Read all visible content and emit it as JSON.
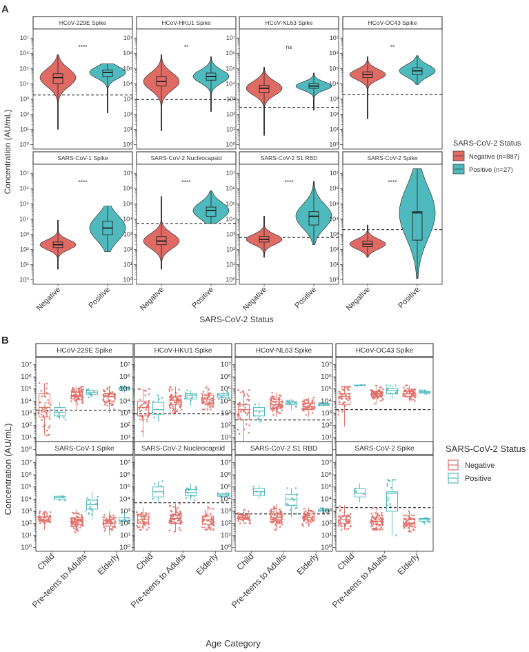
{
  "colors": {
    "negative": "#E06B65",
    "positive": "#4FBABD",
    "negative_dark": "#C6534D",
    "positive_dark": "#2E9FA3"
  },
  "chart_data": [
    {
      "type": "violin",
      "panel_label": "A",
      "title": "",
      "xlabel": "SARS-CoV-2 Status",
      "ylabel": "Concentration (AU/mL)",
      "y_scale": "log10",
      "ylim_exponent": [
        -0.3,
        7.6
      ],
      "y_tick_labels": [
        "10^0",
        "10^1",
        "10^2",
        "10^3",
        "10^4",
        "10^5",
        "10^6",
        "10^7"
      ],
      "categories": [
        "Negative",
        "Positive"
      ],
      "legend": {
        "title": "SARS-CoV-2 Status",
        "entries": [
          {
            "label": "Negative (n=887)",
            "series": "negative"
          },
          {
            "label": "Positive (n=27)",
            "series": "positive"
          }
        ]
      },
      "panels": [
        {
          "title": "HCoV-229E Spike",
          "significance": "****",
          "threshold": 1800,
          "series": [
            {
              "name": "Negative",
              "min": 10,
              "q1": 10000,
              "median": 25000,
              "q3": 45000,
              "max": 800000
            },
            {
              "name": "Positive",
              "min": 120,
              "q1": 30000,
              "median": 55000,
              "q3": 80000,
              "max": 200000
            }
          ]
        },
        {
          "title": "HCoV-HKU1 Spike",
          "significance": "**",
          "threshold": 900,
          "series": [
            {
              "name": "Negative",
              "min": 8,
              "q1": 7000,
              "median": 14000,
              "q3": 30000,
              "max": 800000
            },
            {
              "name": "Positive",
              "min": 150,
              "q1": 17000,
              "median": 30000,
              "q3": 50000,
              "max": 600000
            }
          ]
        },
        {
          "title": "HCoV-NL63 Spike",
          "significance": "ns",
          "threshold": 280,
          "series": [
            {
              "name": "Negative",
              "min": 4,
              "q1": 2500,
              "median": 5000,
              "q3": 8000,
              "max": 120000
            },
            {
              "name": "Positive",
              "min": 180,
              "q1": 5000,
              "median": 7000,
              "q3": 10000,
              "max": 50000
            }
          ]
        },
        {
          "title": "HCoV-OC43 Spike",
          "significance": "**",
          "threshold": 2000,
          "series": [
            {
              "name": "Negative",
              "min": 50,
              "q1": 25000,
              "median": 40000,
              "q3": 60000,
              "max": 600000
            },
            {
              "name": "Positive",
              "min": 9000,
              "q1": 40000,
              "median": 70000,
              "q3": 110000,
              "max": 700000
            }
          ]
        },
        {
          "title": "SARS-CoV-1 Spike",
          "significance": "****",
          "threshold": null,
          "series": [
            {
              "name": "Negative",
              "min": 5,
              "q1": 130,
              "median": 200,
              "q3": 300,
              "max": 8000
            },
            {
              "name": "Positive",
              "min": 70,
              "q1": 900,
              "median": 2500,
              "q3": 7000,
              "max": 70000
            }
          ]
        },
        {
          "title": "SARS-CoV-2 Nucleocapsid",
          "significance": "****",
          "threshold": 5000,
          "series": [
            {
              "name": "Negative",
              "min": 5,
              "q1": 200,
              "median": 350,
              "q3": 700,
              "max": 300000
            },
            {
              "name": "Positive",
              "min": 5000,
              "q1": 15000,
              "median": 35000,
              "q3": 60000,
              "max": 700000
            }
          ]
        },
        {
          "title": "SARS-CoV-2 S1 RBD",
          "significance": "****",
          "threshold": 600,
          "series": [
            {
              "name": "Negative",
              "min": 30,
              "q1": 300,
              "median": 450,
              "q3": 700,
              "max": 15000
            },
            {
              "name": "Positive",
              "min": 200,
              "q1": 4000,
              "median": 15000,
              "q3": 30000,
              "max": 3000000
            }
          ]
        },
        {
          "title": "SARS-CoV-2 Spike",
          "significance": "****",
          "threshold": 2000,
          "series": [
            {
              "name": "Negative",
              "min": 30,
              "q1": 150,
              "median": 220,
              "q3": 350,
              "max": 4000
            },
            {
              "name": "Positive",
              "min": 1.2,
              "q1": 400,
              "median": 25000,
              "q3": 30000,
              "max": 20000000
            }
          ]
        }
      ]
    },
    {
      "type": "boxplot-jitter",
      "panel_label": "B",
      "title": "",
      "xlabel": "Age Category",
      "ylabel": "Concentration (AU/mL)",
      "y_scale": "log10",
      "ylim_exponent": [
        -0.3,
        7.6
      ],
      "y_tick_labels": [
        "10^0",
        "10^1",
        "10^2",
        "10^3",
        "10^4",
        "10^5",
        "10^6",
        "10^7"
      ],
      "categories": [
        "Child",
        "Pre-teens to Adults",
        "Elderly"
      ],
      "legend": {
        "title": "SARS-CoV-2 Status",
        "entries": [
          {
            "label": "Negative",
            "series": "negative"
          },
          {
            "label": "Positive",
            "series": "positive"
          }
        ]
      },
      "panels": [
        {
          "title": "HCoV-229E Spike",
          "threshold": 1800,
          "groups": [
            {
              "category": "Child",
              "series": "Negative",
              "min": 15,
              "q1": 500,
              "median": 3000,
              "q3": 40000,
              "max": 300000,
              "n": 45
            },
            {
              "category": "Child",
              "series": "Positive",
              "min": 300,
              "q1": 600,
              "median": 1200,
              "q3": 3000,
              "max": 8000,
              "n": 6
            },
            {
              "category": "Pre-teens to Adults",
              "series": "Negative",
              "min": 2000,
              "q1": 15000,
              "median": 30000,
              "q3": 50000,
              "max": 150000,
              "n": 70
            },
            {
              "category": "Pre-teens to Adults",
              "series": "Positive",
              "min": 20000,
              "q1": 35000,
              "median": 50000,
              "q3": 70000,
              "max": 100000,
              "n": 10
            },
            {
              "category": "Elderly",
              "series": "Negative",
              "min": 1000,
              "q1": 10000,
              "median": 25000,
              "q3": 40000,
              "max": 150000,
              "n": 50
            },
            {
              "category": "Elderly",
              "series": "Positive",
              "min": 50000,
              "q1": 80000,
              "median": 100000,
              "q3": 130000,
              "max": 200000,
              "n": 7
            }
          ]
        },
        {
          "title": "HCoV-HKU1 Spike",
          "threshold": 900,
          "groups": [
            {
              "category": "Child",
              "series": "Negative",
              "min": 10,
              "q1": 600,
              "median": 3000,
              "q3": 10000,
              "max": 100000,
              "n": 45
            },
            {
              "category": "Child",
              "series": "Positive",
              "min": 200,
              "q1": 800,
              "median": 2000,
              "q3": 8000,
              "max": 30000,
              "n": 6
            },
            {
              "category": "Pre-teens to Adults",
              "series": "Negative",
              "min": 1000,
              "q1": 5000,
              "median": 12000,
              "q3": 25000,
              "max": 150000,
              "n": 70
            },
            {
              "category": "Pre-teens to Adults",
              "series": "Positive",
              "min": 4000,
              "q1": 15000,
              "median": 30000,
              "q3": 40000,
              "max": 80000,
              "n": 10
            },
            {
              "category": "Elderly",
              "series": "Negative",
              "min": 2000,
              "q1": 7000,
              "median": 15000,
              "q3": 30000,
              "max": 200000,
              "n": 50
            },
            {
              "category": "Elderly",
              "series": "Positive",
              "min": 15000,
              "q1": 20000,
              "median": 30000,
              "q3": 40000,
              "max": 60000,
              "n": 7
            }
          ]
        },
        {
          "title": "HCoV-NL63 Spike",
          "threshold": 280,
          "groups": [
            {
              "category": "Child",
              "series": "Negative",
              "min": 4,
              "q1": 300,
              "median": 2000,
              "q3": 5000,
              "max": 80000,
              "n": 45
            },
            {
              "category": "Child",
              "series": "Positive",
              "min": 200,
              "q1": 600,
              "median": 1500,
              "q3": 3000,
              "max": 8000,
              "n": 6
            },
            {
              "category": "Pre-teens to Adults",
              "series": "Negative",
              "min": 500,
              "q1": 2500,
              "median": 5000,
              "q3": 9000,
              "max": 50000,
              "n": 70
            },
            {
              "category": "Pre-teens to Adults",
              "series": "Positive",
              "min": 2000,
              "q1": 5000,
              "median": 7000,
              "q3": 9000,
              "max": 15000,
              "n": 10
            },
            {
              "category": "Elderly",
              "series": "Negative",
              "min": 500,
              "q1": 2000,
              "median": 3500,
              "q3": 6000,
              "max": 20000,
              "n": 50
            },
            {
              "category": "Elderly",
              "series": "Positive",
              "min": 3500,
              "q1": 4500,
              "median": 5500,
              "q3": 6500,
              "max": 8000,
              "n": 5
            }
          ]
        },
        {
          "title": "HCoV-OC43 Spike",
          "threshold": 2000,
          "groups": [
            {
              "category": "Child",
              "series": "Negative",
              "min": 80,
              "q1": 5000,
              "median": 25000,
              "q3": 40000,
              "max": 150000,
              "n": 40
            },
            {
              "category": "Child",
              "series": "Positive",
              "min": 180000,
              "q1": 190000,
              "median": 200000,
              "q3": 210000,
              "max": 220000,
              "n": 4
            },
            {
              "category": "Pre-teens to Adults",
              "series": "Negative",
              "min": 5000,
              "q1": 25000,
              "median": 40000,
              "q3": 60000,
              "max": 200000,
              "n": 70
            },
            {
              "category": "Pre-teens to Adults",
              "series": "Positive",
              "min": 15000,
              "q1": 40000,
              "median": 70000,
              "q3": 110000,
              "max": 200000,
              "n": 10
            },
            {
              "category": "Elderly",
              "series": "Negative",
              "min": 10000,
              "q1": 25000,
              "median": 40000,
              "q3": 60000,
              "max": 200000,
              "n": 50
            },
            {
              "category": "Elderly",
              "series": "Positive",
              "min": 35000,
              "q1": 45000,
              "median": 55000,
              "q3": 65000,
              "max": 80000,
              "n": 6
            }
          ]
        },
        {
          "title": "SARS-CoV-1 Spike",
          "threshold": null,
          "groups": [
            {
              "category": "Child",
              "series": "Negative",
              "min": 30,
              "q1": 130,
              "median": 200,
              "q3": 350,
              "max": 1000,
              "n": 45
            },
            {
              "category": "Child",
              "series": "Positive",
              "min": 8000,
              "q1": 10000,
              "median": 13000,
              "q3": 17000,
              "max": 20000,
              "n": 5
            },
            {
              "category": "Pre-teens to Adults",
              "series": "Negative",
              "min": 15,
              "q1": 80,
              "median": 150,
              "q3": 300,
              "max": 1500,
              "n": 70
            },
            {
              "category": "Pre-teens to Adults",
              "series": "Positive",
              "min": 200,
              "q1": 1500,
              "median": 3500,
              "q3": 8000,
              "max": 40000,
              "n": 14
            },
            {
              "category": "Elderly",
              "series": "Negative",
              "min": 10,
              "q1": 60,
              "median": 100,
              "q3": 200,
              "max": 1000,
              "n": 50
            },
            {
              "category": "Elderly",
              "series": "Positive",
              "min": 100,
              "q1": 150,
              "median": 180,
              "q3": 300,
              "max": 1000,
              "n": 5
            }
          ]
        },
        {
          "title": "SARS-CoV-2 Nucleocapsid",
          "threshold": 5000,
          "groups": [
            {
              "category": "Child",
              "series": "Negative",
              "min": 30,
              "q1": 100,
              "median": 200,
              "q3": 400,
              "max": 2000,
              "n": 45
            },
            {
              "category": "Child",
              "series": "Positive",
              "min": 5000,
              "q1": 15000,
              "median": 40000,
              "q3": 100000,
              "max": 300000,
              "n": 5
            },
            {
              "category": "Pre-teens to Adults",
              "series": "Negative",
              "min": 20,
              "q1": 100,
              "median": 250,
              "q3": 500,
              "max": 4000,
              "n": 70
            },
            {
              "category": "Pre-teens to Adults",
              "series": "Positive",
              "min": 8000,
              "q1": 20000,
              "median": 35000,
              "q3": 60000,
              "max": 200000,
              "n": 14
            },
            {
              "category": "Elderly",
              "series": "Negative",
              "min": 30,
              "q1": 80,
              "median": 200,
              "q3": 400,
              "max": 3000,
              "n": 50
            },
            {
              "category": "Elderly",
              "series": "Positive",
              "min": 15000,
              "q1": 17000,
              "median": 22000,
              "q3": 27000,
              "max": 30000,
              "n": 5
            }
          ]
        },
        {
          "title": "SARS-CoV-2 S1 RBD",
          "threshold": 600,
          "groups": [
            {
              "category": "Child",
              "series": "Negative",
              "min": 100,
              "q1": 200,
              "median": 300,
              "q3": 500,
              "max": 1500,
              "n": 45
            },
            {
              "category": "Child",
              "series": "Positive",
              "min": 10000,
              "q1": 20000,
              "median": 40000,
              "q3": 70000,
              "max": 150000,
              "n": 5
            },
            {
              "category": "Pre-teens to Adults",
              "series": "Negative",
              "min": 30,
              "q1": 150,
              "median": 300,
              "q3": 600,
              "max": 4000,
              "n": 70
            },
            {
              "category": "Pre-teens to Adults",
              "series": "Positive",
              "min": 300,
              "q1": 3000,
              "median": 10000,
              "q3": 25000,
              "max": 80000,
              "n": 14
            },
            {
              "category": "Elderly",
              "series": "Negative",
              "min": 50,
              "q1": 200,
              "median": 300,
              "q3": 600,
              "max": 2000,
              "n": 50
            },
            {
              "category": "Elderly",
              "series": "Positive",
              "min": 900,
              "q1": 1000,
              "median": 1200,
              "q3": 1500,
              "max": 1800,
              "n": 5
            }
          ]
        },
        {
          "title": "SARS-CoV-2 Spike",
          "threshold": 2000,
          "groups": [
            {
              "category": "Child",
              "series": "Negative",
              "min": 30,
              "q1": 100,
              "median": 200,
              "q3": 400,
              "max": 3000,
              "n": 45
            },
            {
              "category": "Child",
              "series": "Positive",
              "min": 5000,
              "q1": 15000,
              "median": 30000,
              "q3": 70000,
              "max": 200000,
              "n": 5
            },
            {
              "category": "Pre-teens to Adults",
              "series": "Negative",
              "min": 30,
              "q1": 80,
              "median": 150,
              "q3": 300,
              "max": 2000,
              "n": 70
            },
            {
              "category": "Pre-teens to Adults",
              "series": "Positive",
              "min": 10,
              "q1": 1000,
              "median": 30000,
              "q3": 40000,
              "max": 400000,
              "n": 14
            },
            {
              "category": "Elderly",
              "series": "Negative",
              "min": 20,
              "q1": 60,
              "median": 100,
              "q3": 200,
              "max": 1000,
              "n": 50
            },
            {
              "category": "Elderly",
              "series": "Positive",
              "min": 80,
              "q1": 150,
              "median": 200,
              "q3": 250,
              "max": 300,
              "n": 5
            }
          ]
        }
      ]
    }
  ]
}
